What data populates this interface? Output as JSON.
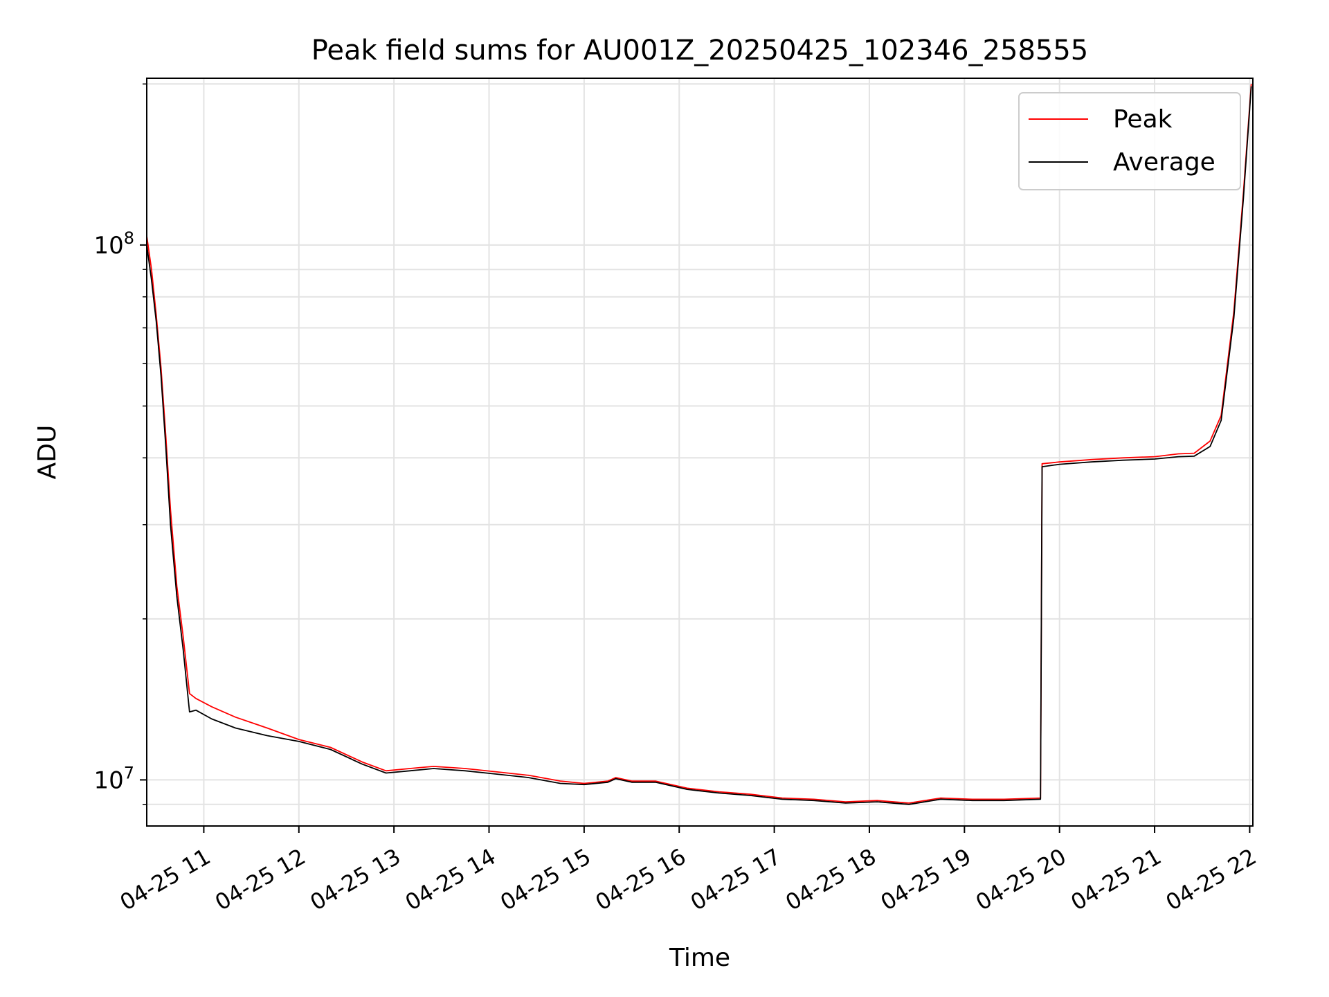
{
  "chart_data": {
    "type": "line",
    "title": "Peak field sums for AU001Z_20250425_102346_258555",
    "xlabel": "Time",
    "ylabel": "ADU",
    "xscale": "time",
    "yscale": "log",
    "xlim": [
      "2025-04-25T10:24",
      "2025-04-25T22:02"
    ],
    "ylim": [
      8200000,
      205000000
    ],
    "grid": true,
    "legend_position": "top-right",
    "x_tick_labels": [
      "04-25 11",
      "04-25 12",
      "04-25 13",
      "04-25 14",
      "04-25 15",
      "04-25 16",
      "04-25 17",
      "04-25 18",
      "04-25 19",
      "04-25 20",
      "04-25 21",
      "04-25 22"
    ],
    "x_ticks": [
      "2025-04-25T11:00",
      "2025-04-25T12:00",
      "2025-04-25T13:00",
      "2025-04-25T14:00",
      "2025-04-25T15:00",
      "2025-04-25T16:00",
      "2025-04-25T17:00",
      "2025-04-25T18:00",
      "2025-04-25T19:00",
      "2025-04-25T20:00",
      "2025-04-25T21:00",
      "2025-04-25T22:00"
    ],
    "y_tick_labels": [
      {
        "value": 10000000,
        "base": "10",
        "exp": "7"
      },
      {
        "value": 100000000,
        "base": "10",
        "exp": "8"
      }
    ],
    "series": [
      {
        "name": "Peak",
        "color": "#ff0000",
        "points": [
          [
            "2025-04-25T10:24",
            104000000
          ],
          [
            "2025-04-25T10:27",
            90000000
          ],
          [
            "2025-04-25T10:30",
            74000000
          ],
          [
            "2025-04-25T10:33",
            59000000
          ],
          [
            "2025-04-25T10:36",
            44000000
          ],
          [
            "2025-04-25T10:39",
            32000000
          ],
          [
            "2025-04-25T10:43",
            23000000
          ],
          [
            "2025-04-25T10:47",
            18500000
          ],
          [
            "2025-04-25T10:51",
            14500000
          ],
          [
            "2025-04-25T10:55",
            14200000
          ],
          [
            "2025-04-25T11:05",
            13700000
          ],
          [
            "2025-04-25T11:20",
            13100000
          ],
          [
            "2025-04-25T11:40",
            12500000
          ],
          [
            "2025-04-25T12:00",
            11900000
          ],
          [
            "2025-04-25T12:20",
            11500000
          ],
          [
            "2025-04-25T12:40",
            10800000
          ],
          [
            "2025-04-25T12:55",
            10400000
          ],
          [
            "2025-04-25T13:10",
            10500000
          ],
          [
            "2025-04-25T13:25",
            10600000
          ],
          [
            "2025-04-25T13:45",
            10500000
          ],
          [
            "2025-04-25T14:05",
            10350000
          ],
          [
            "2025-04-25T14:25",
            10200000
          ],
          [
            "2025-04-25T14:45",
            9950000
          ],
          [
            "2025-04-25T15:00",
            9850000
          ],
          [
            "2025-04-25T15:15",
            9950000
          ],
          [
            "2025-04-25T15:20",
            10100000
          ],
          [
            "2025-04-25T15:30",
            9950000
          ],
          [
            "2025-04-25T15:45",
            9950000
          ],
          [
            "2025-04-25T16:05",
            9650000
          ],
          [
            "2025-04-25T16:25",
            9500000
          ],
          [
            "2025-04-25T16:45",
            9400000
          ],
          [
            "2025-04-25T17:05",
            9250000
          ],
          [
            "2025-04-25T17:25",
            9200000
          ],
          [
            "2025-04-25T17:45",
            9100000
          ],
          [
            "2025-04-25T18:05",
            9150000
          ],
          [
            "2025-04-25T18:25",
            9050000
          ],
          [
            "2025-04-25T18:45",
            9250000
          ],
          [
            "2025-04-25T19:05",
            9200000
          ],
          [
            "2025-04-25T19:25",
            9200000
          ],
          [
            "2025-04-25T19:48",
            9250000
          ],
          [
            "2025-04-25T19:49",
            39000000
          ],
          [
            "2025-04-25T20:00",
            39300000
          ],
          [
            "2025-04-25T20:20",
            39700000
          ],
          [
            "2025-04-25T20:40",
            40000000
          ],
          [
            "2025-04-25T21:00",
            40200000
          ],
          [
            "2025-04-25T21:15",
            40700000
          ],
          [
            "2025-04-25T21:25",
            40800000
          ],
          [
            "2025-04-25T21:35",
            43000000
          ],
          [
            "2025-04-25T21:42",
            48000000
          ],
          [
            "2025-04-25T21:50",
            75000000
          ],
          [
            "2025-04-25T21:56",
            125000000
          ],
          [
            "2025-04-25T22:01",
            200000000
          ]
        ]
      },
      {
        "name": "Average",
        "color": "#000000",
        "points": [
          [
            "2025-04-25T10:24",
            100000000
          ],
          [
            "2025-04-25T10:27",
            86000000
          ],
          [
            "2025-04-25T10:30",
            72000000
          ],
          [
            "2025-04-25T10:33",
            57000000
          ],
          [
            "2025-04-25T10:36",
            42000000
          ],
          [
            "2025-04-25T10:39",
            30000000
          ],
          [
            "2025-04-25T10:43",
            22000000
          ],
          [
            "2025-04-25T10:47",
            17500000
          ],
          [
            "2025-04-25T10:51",
            13400000
          ],
          [
            "2025-04-25T10:55",
            13500000
          ],
          [
            "2025-04-25T11:05",
            13000000
          ],
          [
            "2025-04-25T11:20",
            12500000
          ],
          [
            "2025-04-25T11:40",
            12100000
          ],
          [
            "2025-04-25T12:00",
            11800000
          ],
          [
            "2025-04-25T12:20",
            11400000
          ],
          [
            "2025-04-25T12:40",
            10700000
          ],
          [
            "2025-04-25T12:55",
            10300000
          ],
          [
            "2025-04-25T13:10",
            10400000
          ],
          [
            "2025-04-25T13:25",
            10500000
          ],
          [
            "2025-04-25T13:45",
            10400000
          ],
          [
            "2025-04-25T14:05",
            10250000
          ],
          [
            "2025-04-25T14:25",
            10100000
          ],
          [
            "2025-04-25T14:45",
            9850000
          ],
          [
            "2025-04-25T15:00",
            9800000
          ],
          [
            "2025-04-25T15:15",
            9900000
          ],
          [
            "2025-04-25T15:20",
            10050000
          ],
          [
            "2025-04-25T15:30",
            9900000
          ],
          [
            "2025-04-25T15:45",
            9900000
          ],
          [
            "2025-04-25T16:05",
            9600000
          ],
          [
            "2025-04-25T16:25",
            9450000
          ],
          [
            "2025-04-25T16:45",
            9350000
          ],
          [
            "2025-04-25T17:05",
            9200000
          ],
          [
            "2025-04-25T17:25",
            9150000
          ],
          [
            "2025-04-25T17:45",
            9050000
          ],
          [
            "2025-04-25T18:05",
            9100000
          ],
          [
            "2025-04-25T18:25",
            9000000
          ],
          [
            "2025-04-25T18:45",
            9200000
          ],
          [
            "2025-04-25T19:05",
            9150000
          ],
          [
            "2025-04-25T19:25",
            9150000
          ],
          [
            "2025-04-25T19:48",
            9200000
          ],
          [
            "2025-04-25T19:49",
            38500000
          ],
          [
            "2025-04-25T20:00",
            38900000
          ],
          [
            "2025-04-25T20:20",
            39300000
          ],
          [
            "2025-04-25T20:40",
            39600000
          ],
          [
            "2025-04-25T21:00",
            39800000
          ],
          [
            "2025-04-25T21:15",
            40200000
          ],
          [
            "2025-04-25T21:25",
            40300000
          ],
          [
            "2025-04-25T21:35",
            42000000
          ],
          [
            "2025-04-25T21:42",
            47000000
          ],
          [
            "2025-04-25T21:50",
            73000000
          ],
          [
            "2025-04-25T21:56",
            122000000
          ],
          [
            "2025-04-25T22:01",
            198000000
          ]
        ]
      }
    ]
  }
}
